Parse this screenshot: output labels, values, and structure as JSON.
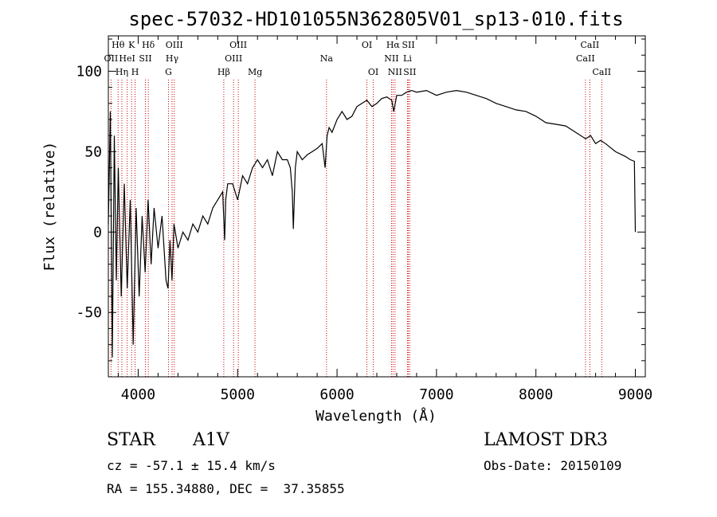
{
  "chart_data": {
    "type": "line",
    "title": "spec-57032-HD101055N362805V01_sp13-010.fits",
    "xlabel": "Wavelength (Å)",
    "ylabel": "Flux (relative)",
    "xlim": [
      3700,
      9100
    ],
    "ylim": [
      -90,
      122
    ],
    "xticks": [
      4000,
      5000,
      6000,
      7000,
      8000,
      9000
    ],
    "yticks": [
      -50,
      0,
      50,
      100
    ],
    "series": [
      {
        "name": "flux",
        "x": [
          3700,
          3720,
          3740,
          3760,
          3780,
          3800,
          3830,
          3860,
          3890,
          3920,
          3950,
          3980,
          4010,
          4040,
          4070,
          4100,
          4130,
          4160,
          4200,
          4240,
          4280,
          4300,
          4320,
          4340,
          4360,
          4400,
          4450,
          4500,
          4550,
          4600,
          4650,
          4700,
          4750,
          4800,
          4850,
          4870,
          4880,
          4900,
          4950,
          5000,
          5050,
          5100,
          5150,
          5200,
          5250,
          5300,
          5350,
          5400,
          5450,
          5500,
          5530,
          5550,
          5560,
          5580,
          5600,
          5650,
          5700,
          5750,
          5800,
          5850,
          5880,
          5900,
          5920,
          5950,
          6000,
          6050,
          6100,
          6150,
          6200,
          6250,
          6300,
          6350,
          6400,
          6450,
          6500,
          6550,
          6570,
          6600,
          6650,
          6700,
          6750,
          6800,
          6900,
          7000,
          7100,
          7200,
          7300,
          7400,
          7500,
          7600,
          7700,
          7800,
          7900,
          8000,
          8100,
          8200,
          8300,
          8400,
          8500,
          8550,
          8600,
          8650,
          8700,
          8800,
          8900,
          8950,
          8990,
          9000
        ],
        "values": [
          5,
          75,
          -78,
          60,
          -30,
          40,
          -40,
          30,
          -35,
          20,
          -70,
          15,
          -40,
          10,
          -25,
          20,
          -20,
          15,
          -10,
          10,
          -30,
          -35,
          -5,
          -30,
          5,
          -10,
          0,
          -5,
          5,
          0,
          10,
          5,
          15,
          20,
          25,
          -5,
          20,
          30,
          30,
          20,
          35,
          30,
          40,
          45,
          40,
          45,
          35,
          50,
          45,
          45,
          40,
          25,
          2,
          40,
          50,
          45,
          48,
          50,
          52,
          55,
          40,
          60,
          65,
          62,
          70,
          75,
          70,
          72,
          78,
          80,
          82,
          78,
          80,
          83,
          84,
          82,
          75,
          85,
          85,
          87,
          88,
          87,
          88,
          85,
          87,
          88,
          87,
          85,
          83,
          80,
          78,
          76,
          75,
          72,
          68,
          67,
          66,
          62,
          58,
          60,
          55,
          57,
          55,
          50,
          47,
          45,
          44,
          0
        ]
      }
    ],
    "lines": [
      {
        "label": "Hθ",
        "x": 3798,
        "row": 0
      },
      {
        "label": "OII",
        "x": 3727,
        "row": 1
      },
      {
        "label": "Hη",
        "x": 3836,
        "row": 2
      },
      {
        "label": "K",
        "x": 3934,
        "row": 0
      },
      {
        "label": "H",
        "x": 3969,
        "row": 2
      },
      {
        "label": "HeI",
        "x": 3889,
        "row": 1
      },
      {
        "label": "SII",
        "x": 4072,
        "row": 1
      },
      {
        "label": "Hδ",
        "x": 4102,
        "row": 0
      },
      {
        "label": "OIII",
        "x": 4363,
        "row": 0
      },
      {
        "label": "Hγ",
        "x": 4341,
        "row": 1
      },
      {
        "label": "G",
        "x": 4305,
        "row": 2
      },
      {
        "label": "Hβ",
        "x": 4861,
        "row": 2
      },
      {
        "label": "OIII",
        "x": 5007,
        "row": 0
      },
      {
        "label": "OIII",
        "x": 4959,
        "row": 1
      },
      {
        "label": "Mg",
        "x": 5175,
        "row": 2
      },
      {
        "label": "Na",
        "x": 5894,
        "row": 1
      },
      {
        "label": "OI",
        "x": 6300,
        "row": 0
      },
      {
        "label": "OI",
        "x": 6364,
        "row": 2
      },
      {
        "label": "Hα",
        "x": 6563,
        "row": 0
      },
      {
        "label": "NII",
        "x": 6548,
        "row": 1
      },
      {
        "label": "NII",
        "x": 6583,
        "row": 2
      },
      {
        "label": "SII",
        "x": 6717,
        "row": 0
      },
      {
        "label": "Li",
        "x": 6708,
        "row": 1
      },
      {
        "label": "SII",
        "x": 6731,
        "row": 2
      },
      {
        "label": "CaII",
        "x": 8542,
        "row": 0
      },
      {
        "label": "CaII",
        "x": 8498,
        "row": 1
      },
      {
        "label": "CaII",
        "x": 8662,
        "row": 2
      }
    ]
  },
  "info": {
    "object_class": "STAR",
    "subclass": "A1V",
    "survey": "LAMOST DR3",
    "cz": "cz = -57.1 ± 15.4 km/s",
    "obs_date": "Obs-Date: 20150109",
    "coords": "RA = 155.34880, DEC =  37.35855"
  }
}
